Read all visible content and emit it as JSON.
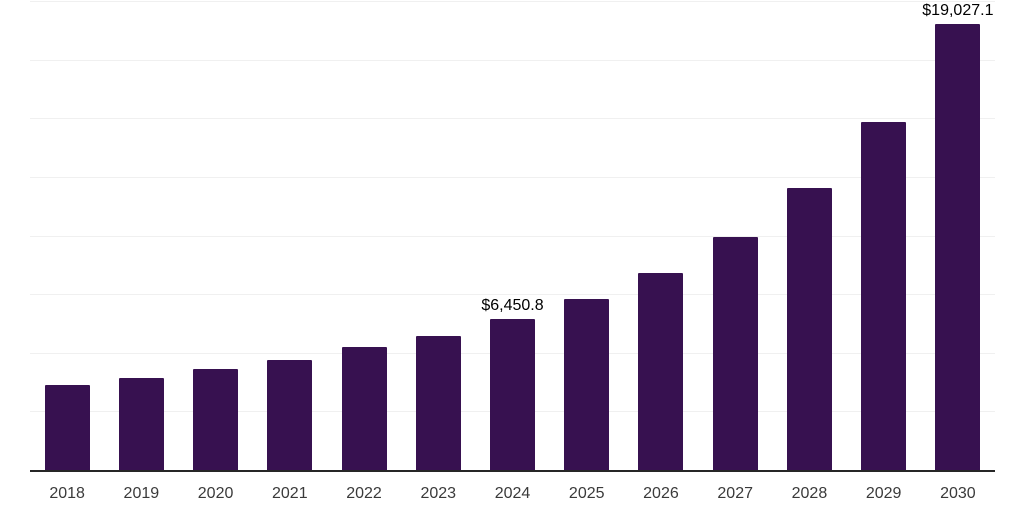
{
  "chart_data": {
    "type": "bar",
    "title": "",
    "xlabel": "",
    "ylabel": "",
    "categories": [
      "2018",
      "2019",
      "2020",
      "2021",
      "2022",
      "2023",
      "2024",
      "2025",
      "2026",
      "2027",
      "2028",
      "2029",
      "2030"
    ],
    "values": [
      3640,
      3940,
      4320,
      4710,
      5260,
      5730,
      6450.8,
      7310,
      8400,
      9930,
      12020,
      14860,
      19027.1
    ],
    "data_labels": [
      {
        "category": "2024",
        "index": 6,
        "text": "$6,450.8"
      },
      {
        "category": "2030",
        "index": 12,
        "text": "$19,027.1"
      }
    ],
    "ylim": [
      0,
      20000
    ],
    "grid_step": 2500,
    "grid": "horizontal",
    "legend_position": "none",
    "y_tick_labels_visible": false,
    "colors": {
      "bar": "#371150",
      "gridline": "#f0f0f0",
      "axis_line": "#262626",
      "x_tick_label": "#3a3a3a",
      "data_label": "#000000",
      "background": "#ffffff"
    }
  }
}
